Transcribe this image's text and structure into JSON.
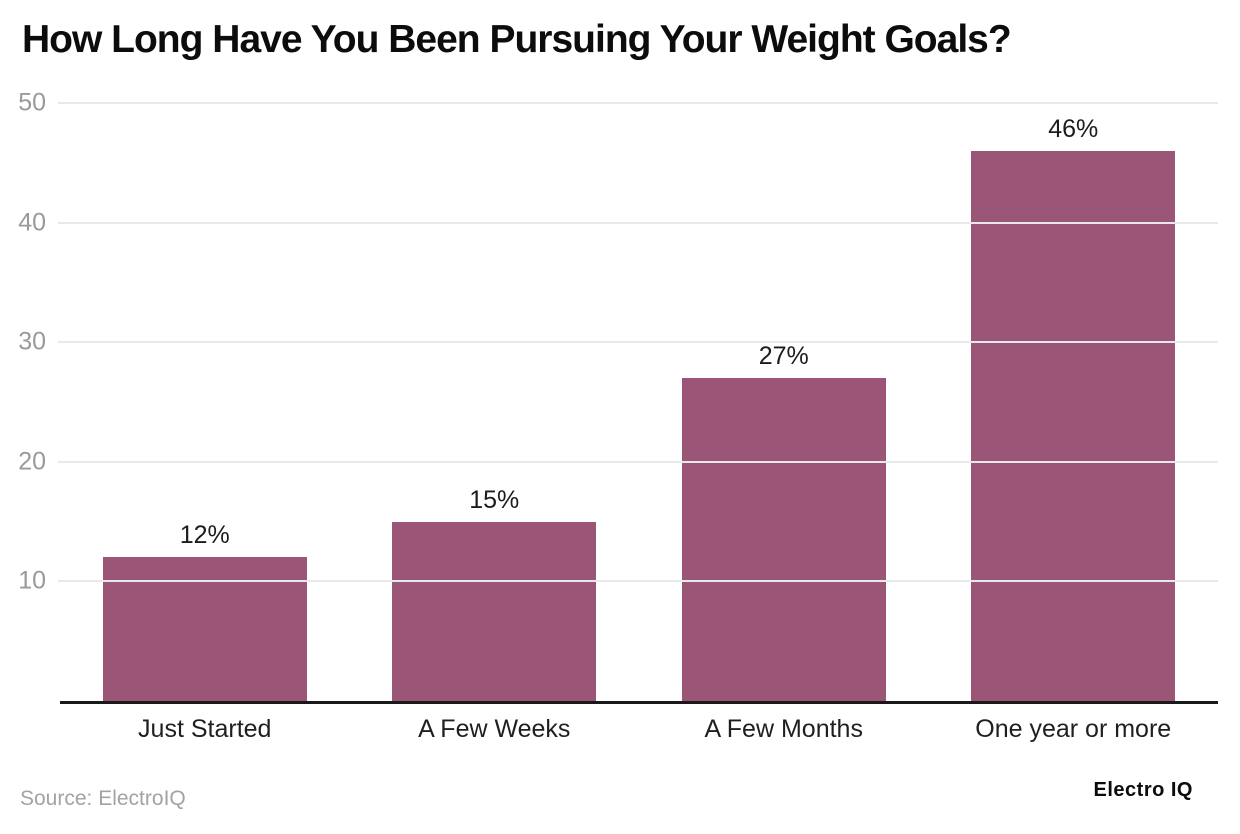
{
  "title": "How Long Have You Been Pursuing Your Weight Goals?",
  "footer": {
    "source": "Source: ElectroIQ",
    "brand": "Electro IQ"
  },
  "colors": {
    "bar": "#9a5577",
    "gridline": "#e9e9e9",
    "axis_line": "#1a1a1a",
    "tick_label": "#9a9a9a",
    "value_label": "#1c1c1c"
  },
  "chart_data": {
    "type": "bar",
    "title": "How Long Have You Been Pursuing Your Weight Goals?",
    "categories": [
      "Just Started",
      "A Few Weeks",
      "A Few Months",
      "One year or more"
    ],
    "values": [
      12,
      15,
      27,
      46
    ],
    "value_labels": [
      "12%",
      "15%",
      "27%",
      "46%"
    ],
    "xlabel": "",
    "ylabel": "",
    "ylim": [
      0,
      50
    ],
    "yticks": [
      10,
      20,
      30,
      40,
      50
    ],
    "grid": true,
    "legend": false
  }
}
